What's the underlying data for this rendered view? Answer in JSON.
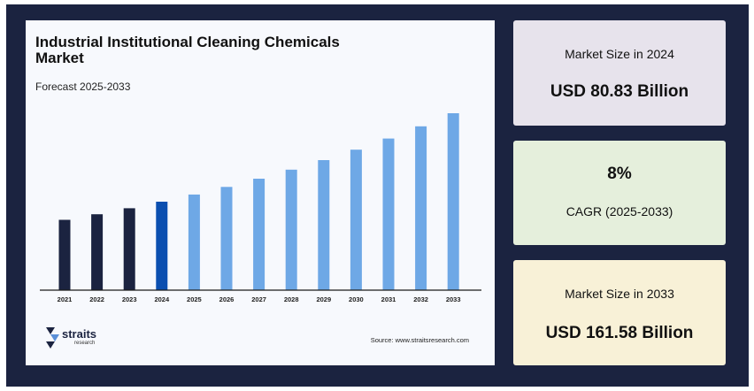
{
  "title": "Industrial Institutional Cleaning Chemicals Market",
  "subtitle": "Forecast 2025-2033",
  "source": "Source: www.straitsresearch.com",
  "brand": {
    "name": "straits",
    "tagline": "research"
  },
  "colors": {
    "background": "#1b2340",
    "historic": "#1b2340",
    "base_year": "#0b4fb0",
    "forecast": "#6ea8e6"
  },
  "stats": {
    "size_2024_label": "Market Size in 2024",
    "size_2024_value": "USD 80.83 Billion",
    "cagr_value": "8%",
    "cagr_label": "CAGR (2025-2033)",
    "size_2033_label": "Market Size in 2033",
    "size_2033_value": "USD 161.58 Billion"
  },
  "chart_data": {
    "type": "bar",
    "categories": [
      "2021",
      "2022",
      "2023",
      "2024",
      "2025",
      "2026",
      "2027",
      "2028",
      "2029",
      "2030",
      "2031",
      "2032",
      "2033"
    ],
    "values": [
      64.2,
      69.3,
      74.8,
      80.83,
      87.3,
      94.3,
      101.8,
      110.0,
      118.8,
      128.3,
      138.5,
      149.6,
      161.58
    ],
    "bar_roles": [
      "historic",
      "historic",
      "historic",
      "base",
      "forecast",
      "forecast",
      "forecast",
      "forecast",
      "forecast",
      "forecast",
      "forecast",
      "forecast",
      "forecast"
    ],
    "yaxis_visible": false,
    "grid": false
  }
}
